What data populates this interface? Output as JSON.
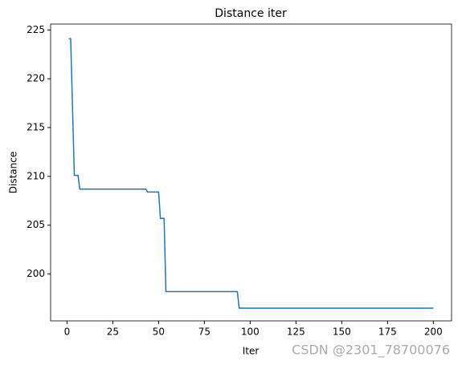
{
  "chart_data": {
    "type": "line",
    "title": "Distance iter",
    "x_label": "Iter",
    "y_label": "Distance",
    "annotation": "CSDN @2301_78700076",
    "x": [
      1,
      2,
      4,
      6,
      7,
      43,
      44,
      50,
      51,
      53,
      54,
      93,
      94,
      200
    ],
    "series": [
      {
        "name": "Distance",
        "color": "#1f77b4",
        "values": [
          224.1,
          224.1,
          210.1,
          210.1,
          208.7,
          208.7,
          208.4,
          208.4,
          205.7,
          205.7,
          198.2,
          198.2,
          196.5,
          196.5
        ]
      }
    ],
    "xlim": [
      -8.95,
      209.95
    ],
    "ylim": [
      195.2,
      225.6
    ],
    "xticks": [
      0,
      25,
      50,
      75,
      100,
      125,
      150,
      175,
      200
    ],
    "yticks": [
      200,
      205,
      210,
      215,
      220,
      225
    ],
    "grid": false
  }
}
